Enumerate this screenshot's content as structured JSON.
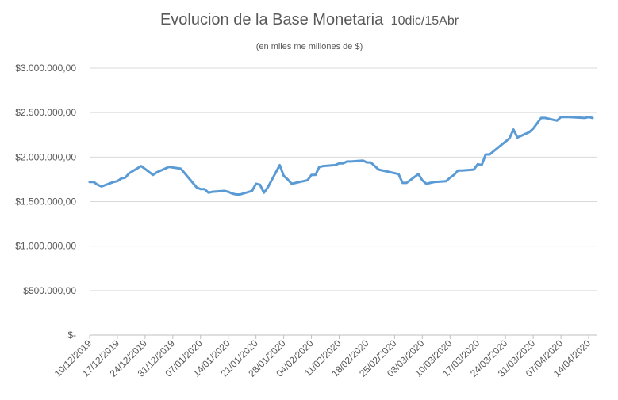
{
  "chart_data": {
    "type": "line",
    "title": "Evolucion de la Base Monetaria",
    "title_suffix": "10dic/15Abr",
    "subtitle": "(en miles me millones de $)",
    "xlabel": "",
    "ylabel": "",
    "ylim": [
      0,
      3000000
    ],
    "y_ticks": [
      {
        "value": 0,
        "label": "$-"
      },
      {
        "value": 500000,
        "label": "$500.000,00"
      },
      {
        "value": 1000000,
        "label": "$1.000.000,00"
      },
      {
        "value": 1500000,
        "label": "$1.500.000,00"
      },
      {
        "value": 2000000,
        "label": "$2.000.000,00"
      },
      {
        "value": 2500000,
        "label": "$2.500.000,00"
      },
      {
        "value": 3000000,
        "label": "$3.000.000,00"
      }
    ],
    "x_ticks": [
      "10/12/2019",
      "17/12/2019",
      "24/12/2019",
      "31/12/2019",
      "07/01/2020",
      "14/01/2020",
      "21/01/2020",
      "28/01/2020",
      "04/02/2020",
      "11/02/2020",
      "18/02/2020",
      "25/02/2020",
      "03/03/2020",
      "10/03/2020",
      "17/03/2020",
      "24/03/2020",
      "31/03/2020",
      "07/04/2020",
      "14/04/2020"
    ],
    "grid": true,
    "legend": "none",
    "line_color": "#5b9bd5",
    "series": [
      {
        "x": [
          "2019-12-10",
          "2019-12-11",
          "2019-12-12",
          "2019-12-13",
          "2019-12-16",
          "2019-12-17",
          "2019-12-18",
          "2019-12-19",
          "2019-12-20",
          "2019-12-23",
          "2019-12-26",
          "2019-12-27",
          "2019-12-30",
          "2020-01-02",
          "2020-01-03",
          "2020-01-06",
          "2020-01-07",
          "2020-01-08",
          "2020-01-09",
          "2020-01-10",
          "2020-01-13",
          "2020-01-14",
          "2020-01-15",
          "2020-01-16",
          "2020-01-17",
          "2020-01-20",
          "2020-01-21",
          "2020-01-22",
          "2020-01-23",
          "2020-01-24",
          "2020-01-27",
          "2020-01-28",
          "2020-01-29",
          "2020-01-30",
          "2020-01-31",
          "2020-02-03",
          "2020-02-04",
          "2020-02-05",
          "2020-02-06",
          "2020-02-07",
          "2020-02-10",
          "2020-02-11",
          "2020-02-12",
          "2020-02-13",
          "2020-02-14",
          "2020-02-17",
          "2020-02-18",
          "2020-02-19",
          "2020-02-20",
          "2020-02-21",
          "2020-02-26",
          "2020-02-27",
          "2020-02-28",
          "2020-03-02",
          "2020-03-03",
          "2020-03-04",
          "2020-03-05",
          "2020-03-06",
          "2020-03-09",
          "2020-03-10",
          "2020-03-11",
          "2020-03-12",
          "2020-03-13",
          "2020-03-16",
          "2020-03-17",
          "2020-03-18",
          "2020-03-19",
          "2020-03-20",
          "2020-03-25",
          "2020-03-26",
          "2020-03-27",
          "2020-03-30",
          "2020-03-31",
          "2020-04-01",
          "2020-04-02",
          "2020-04-03",
          "2020-04-06",
          "2020-04-07",
          "2020-04-08",
          "2020-04-09",
          "2020-04-13",
          "2020-04-14",
          "2020-04-15"
        ],
        "values": [
          1720000,
          1720000,
          1690000,
          1670000,
          1720000,
          1730000,
          1760000,
          1770000,
          1820000,
          1900000,
          1800000,
          1830000,
          1890000,
          1870000,
          1820000,
          1660000,
          1640000,
          1640000,
          1600000,
          1610000,
          1620000,
          1610000,
          1590000,
          1580000,
          1580000,
          1620000,
          1700000,
          1690000,
          1600000,
          1660000,
          1910000,
          1790000,
          1750000,
          1700000,
          1710000,
          1740000,
          1800000,
          1800000,
          1890000,
          1900000,
          1910000,
          1930000,
          1930000,
          1950000,
          1950000,
          1960000,
          1940000,
          1940000,
          1900000,
          1860000,
          1810000,
          1710000,
          1710000,
          1810000,
          1740000,
          1700000,
          1710000,
          1720000,
          1730000,
          1770000,
          1800000,
          1850000,
          1850000,
          1860000,
          1920000,
          1910000,
          2030000,
          2030000,
          2210000,
          2310000,
          2220000,
          2280000,
          2320000,
          2380000,
          2440000,
          2440000,
          2410000,
          2450000,
          2450000,
          2450000,
          2440000,
          2450000,
          2440000
        ]
      }
    ]
  }
}
